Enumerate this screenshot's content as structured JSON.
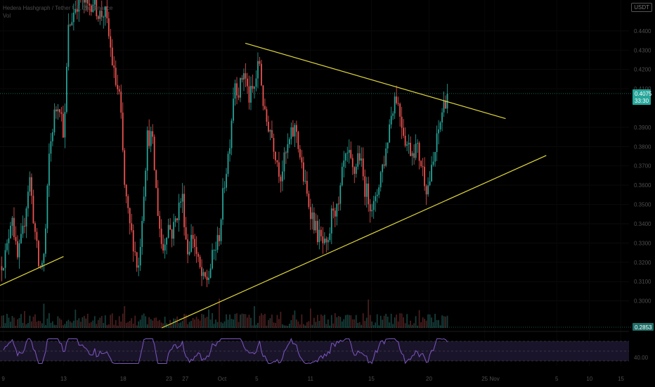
{
  "legend": {
    "symbol": "Hedera Hashgraph / Tether US, 2h, Binance",
    "indicator": "Vol"
  },
  "currency_badge": "USDT",
  "chart_data": {
    "type": "candlestick",
    "price_axis_ticks": [
      0.3,
      0.31,
      0.32,
      0.33,
      0.34,
      0.35,
      0.36,
      0.37,
      0.38,
      0.39,
      0.41,
      0.42,
      0.43,
      0.44
    ],
    "price_axis_labels": [
      "0.3000",
      "0.3100",
      "0.3200",
      "0.3300",
      "0.3400",
      "0.3500",
      "0.3600",
      "0.3700",
      "0.3800",
      "0.3900",
      "0.4100",
      "0.4200",
      "0.4300",
      "0.4400"
    ],
    "ylim": [
      0.286,
      0.456
    ],
    "time_axis_labels": [
      "9",
      "13",
      "18",
      "23",
      "27",
      "Oct",
      "5",
      "11",
      "15",
      "20",
      "25",
      "Nov",
      "5",
      "10",
      "15"
    ],
    "current_price": {
      "value": 0.4075,
      "label": "0.4075",
      "countdown": "33:30",
      "color": "#26a69a"
    },
    "volume_badge": {
      "label": "0.2853",
      "color": "#1e6f68"
    },
    "rsi_axis_label": "40.00",
    "rsi_band": [
      30,
      70
    ],
    "rsi_mid": 50,
    "trendlines": [
      {
        "name": "upper-resistance",
        "from": {
          "t": 0.3745,
          "p": 0.4336
        },
        "to": {
          "t": 0.772,
          "p": 0.3945
        },
        "color": "#e0d83c"
      },
      {
        "name": "lower-support",
        "from": {
          "t": 0.247,
          "p": 0.286
        },
        "to": {
          "t": 0.834,
          "p": 0.3754
        },
        "color": "#e0d83c"
      },
      {
        "name": "early-support",
        "from": {
          "t": 0.0,
          "p": 0.308
        },
        "to": {
          "t": 0.097,
          "p": 0.323
        },
        "color": "#e0d83c"
      }
    ],
    "price_path": [
      [
        0.0,
        0.318
      ],
      [
        0.01,
        0.325
      ],
      [
        0.018,
        0.348
      ],
      [
        0.026,
        0.32
      ],
      [
        0.035,
        0.335
      ],
      [
        0.045,
        0.365
      ],
      [
        0.052,
        0.34
      ],
      [
        0.06,
        0.315
      ],
      [
        0.068,
        0.325
      ],
      [
        0.075,
        0.375
      ],
      [
        0.082,
        0.395
      ],
      [
        0.09,
        0.405
      ],
      [
        0.098,
        0.385
      ],
      [
        0.104,
        0.44
      ],
      [
        0.11,
        0.447
      ],
      [
        0.116,
        0.454
      ],
      [
        0.124,
        0.457
      ],
      [
        0.133,
        0.452
      ],
      [
        0.142,
        0.456
      ],
      [
        0.152,
        0.448
      ],
      [
        0.16,
        0.45
      ],
      [
        0.167,
        0.435
      ],
      [
        0.175,
        0.415
      ],
      [
        0.183,
        0.405
      ],
      [
        0.19,
        0.36
      ],
      [
        0.197,
        0.34
      ],
      [
        0.204,
        0.33
      ],
      [
        0.211,
        0.315
      ],
      [
        0.218,
        0.35
      ],
      [
        0.225,
        0.385
      ],
      [
        0.232,
        0.385
      ],
      [
        0.24,
        0.35
      ],
      [
        0.248,
        0.325
      ],
      [
        0.256,
        0.34
      ],
      [
        0.263,
        0.335
      ],
      [
        0.27,
        0.345
      ],
      [
        0.278,
        0.355
      ],
      [
        0.286,
        0.325
      ],
      [
        0.294,
        0.335
      ],
      [
        0.302,
        0.32
      ],
      [
        0.31,
        0.31
      ],
      [
        0.318,
        0.312
      ],
      [
        0.326,
        0.325
      ],
      [
        0.334,
        0.332
      ],
      [
        0.342,
        0.36
      ],
      [
        0.35,
        0.38
      ],
      [
        0.358,
        0.415
      ],
      [
        0.365,
        0.408
      ],
      [
        0.372,
        0.42
      ],
      [
        0.38,
        0.405
      ],
      [
        0.388,
        0.41
      ],
      [
        0.396,
        0.425
      ],
      [
        0.404,
        0.395
      ],
      [
        0.412,
        0.39
      ],
      [
        0.42,
        0.378
      ],
      [
        0.428,
        0.365
      ],
      [
        0.436,
        0.375
      ],
      [
        0.444,
        0.385
      ],
      [
        0.452,
        0.39
      ],
      [
        0.46,
        0.37
      ],
      [
        0.468,
        0.355
      ],
      [
        0.476,
        0.345
      ],
      [
        0.484,
        0.335
      ],
      [
        0.492,
        0.33
      ],
      [
        0.5,
        0.325
      ],
      [
        0.508,
        0.35
      ],
      [
        0.516,
        0.345
      ],
      [
        0.524,
        0.37
      ],
      [
        0.532,
        0.375
      ],
      [
        0.54,
        0.365
      ],
      [
        0.548,
        0.378
      ],
      [
        0.556,
        0.36
      ],
      [
        0.564,
        0.352
      ],
      [
        0.572,
        0.348
      ],
      [
        0.58,
        0.365
      ],
      [
        0.588,
        0.375
      ],
      [
        0.596,
        0.395
      ],
      [
        0.604,
        0.408
      ],
      [
        0.612,
        0.395
      ],
      [
        0.62,
        0.382
      ],
      [
        0.628,
        0.378
      ],
      [
        0.636,
        0.38
      ],
      [
        0.644,
        0.37
      ],
      [
        0.652,
        0.358
      ],
      [
        0.66,
        0.368
      ],
      [
        0.668,
        0.385
      ],
      [
        0.676,
        0.4
      ],
      [
        0.683,
        0.4075
      ]
    ]
  }
}
